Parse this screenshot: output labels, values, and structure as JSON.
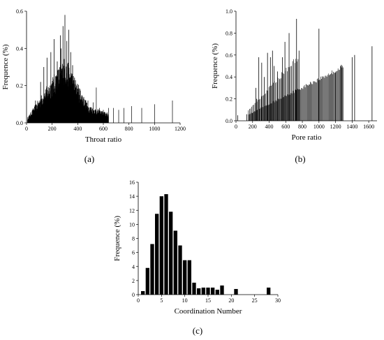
{
  "chart_data": [
    {
      "type": "bar",
      "panel_label": "(a)",
      "xlabel": "Throat  ratio",
      "ylabel": "Frequence (%)",
      "xlim": [
        0,
        1200
      ],
      "ylim": [
        0,
        0.6
      ],
      "xticks": [
        0,
        200,
        400,
        600,
        800,
        1000,
        1200
      ],
      "yticks": [
        "0.0",
        "0.2",
        "0.4",
        "0.6"
      ],
      "peak_x": [
        70,
        110,
        135,
        160,
        190,
        215,
        240,
        265,
        270,
        285,
        300,
        315,
        330,
        345,
        360
      ],
      "peak_y": [
        0.12,
        0.22,
        0.3,
        0.35,
        0.38,
        0.45,
        0.33,
        0.47,
        0.4,
        0.52,
        0.58,
        0.44,
        0.5,
        0.38,
        0.31
      ],
      "tail_x": [
        480,
        520,
        545,
        570,
        600,
        640,
        680,
        720,
        760,
        820,
        900,
        1000,
        1140
      ],
      "tail_y": [
        0.12,
        0.11,
        0.19,
        0.08,
        0.07,
        0.08,
        0.08,
        0.07,
        0.08,
        0.09,
        0.08,
        0.1,
        0.12
      ]
    },
    {
      "type": "bar",
      "panel_label": "(b)",
      "xlabel": "Pore ratio",
      "ylabel": "Frequence (%)",
      "xlim": [
        0,
        1700
      ],
      "ylim": [
        0,
        1.0
      ],
      "xticks": [
        0,
        200,
        400,
        600,
        800,
        1000,
        1200,
        1400,
        1600
      ],
      "yticks": [
        "0.0",
        "0.2",
        "0.4",
        "0.6",
        "0.8",
        "1.0"
      ],
      "tall_x": [
        20,
        130,
        200,
        240,
        250,
        275,
        310,
        340,
        380,
        415,
        440,
        460,
        500,
        540,
        560,
        590,
        640,
        730,
        760,
        1000,
        1200,
        1270,
        1400,
        1430,
        1640
      ],
      "tall_y": [
        0.05,
        0.06,
        0.07,
        0.3,
        0.2,
        0.58,
        0.53,
        0.4,
        0.62,
        0.58,
        0.64,
        0.5,
        0.45,
        0.38,
        0.58,
        0.72,
        0.8,
        0.93,
        0.64,
        0.84,
        0.44,
        0.51,
        0.58,
        0.6,
        0.68
      ],
      "band_upper_x": [
        150,
        760
      ],
      "band_upper_y": [
        0.1,
        0.62
      ],
      "band_lower_x": [
        150,
        1300
      ],
      "band_lower_y": [
        0.06,
        0.52
      ]
    },
    {
      "type": "bar",
      "panel_label": "(c)",
      "xlabel": "Coordination Number",
      "ylabel": "Frequence (%)",
      "xlim": [
        0,
        30
      ],
      "ylim": [
        0,
        16
      ],
      "xticks": [
        0,
        5,
        10,
        15,
        20,
        25,
        30
      ],
      "yticks": [
        "0",
        "2",
        "4",
        "6",
        "8",
        "10",
        "12",
        "14",
        "16"
      ],
      "categories": [
        1,
        2,
        3,
        4,
        5,
        6,
        7,
        8,
        9,
        10,
        11,
        12,
        13,
        14,
        15,
        16,
        17,
        18,
        21,
        28
      ],
      "values": [
        0.5,
        3.8,
        7.2,
        11.5,
        14.0,
        14.3,
        11.8,
        9.1,
        7.0,
        4.9,
        4.9,
        1.7,
        0.9,
        1.0,
        1.0,
        1.0,
        0.7,
        1.3,
        0.8,
        1.0
      ]
    }
  ]
}
